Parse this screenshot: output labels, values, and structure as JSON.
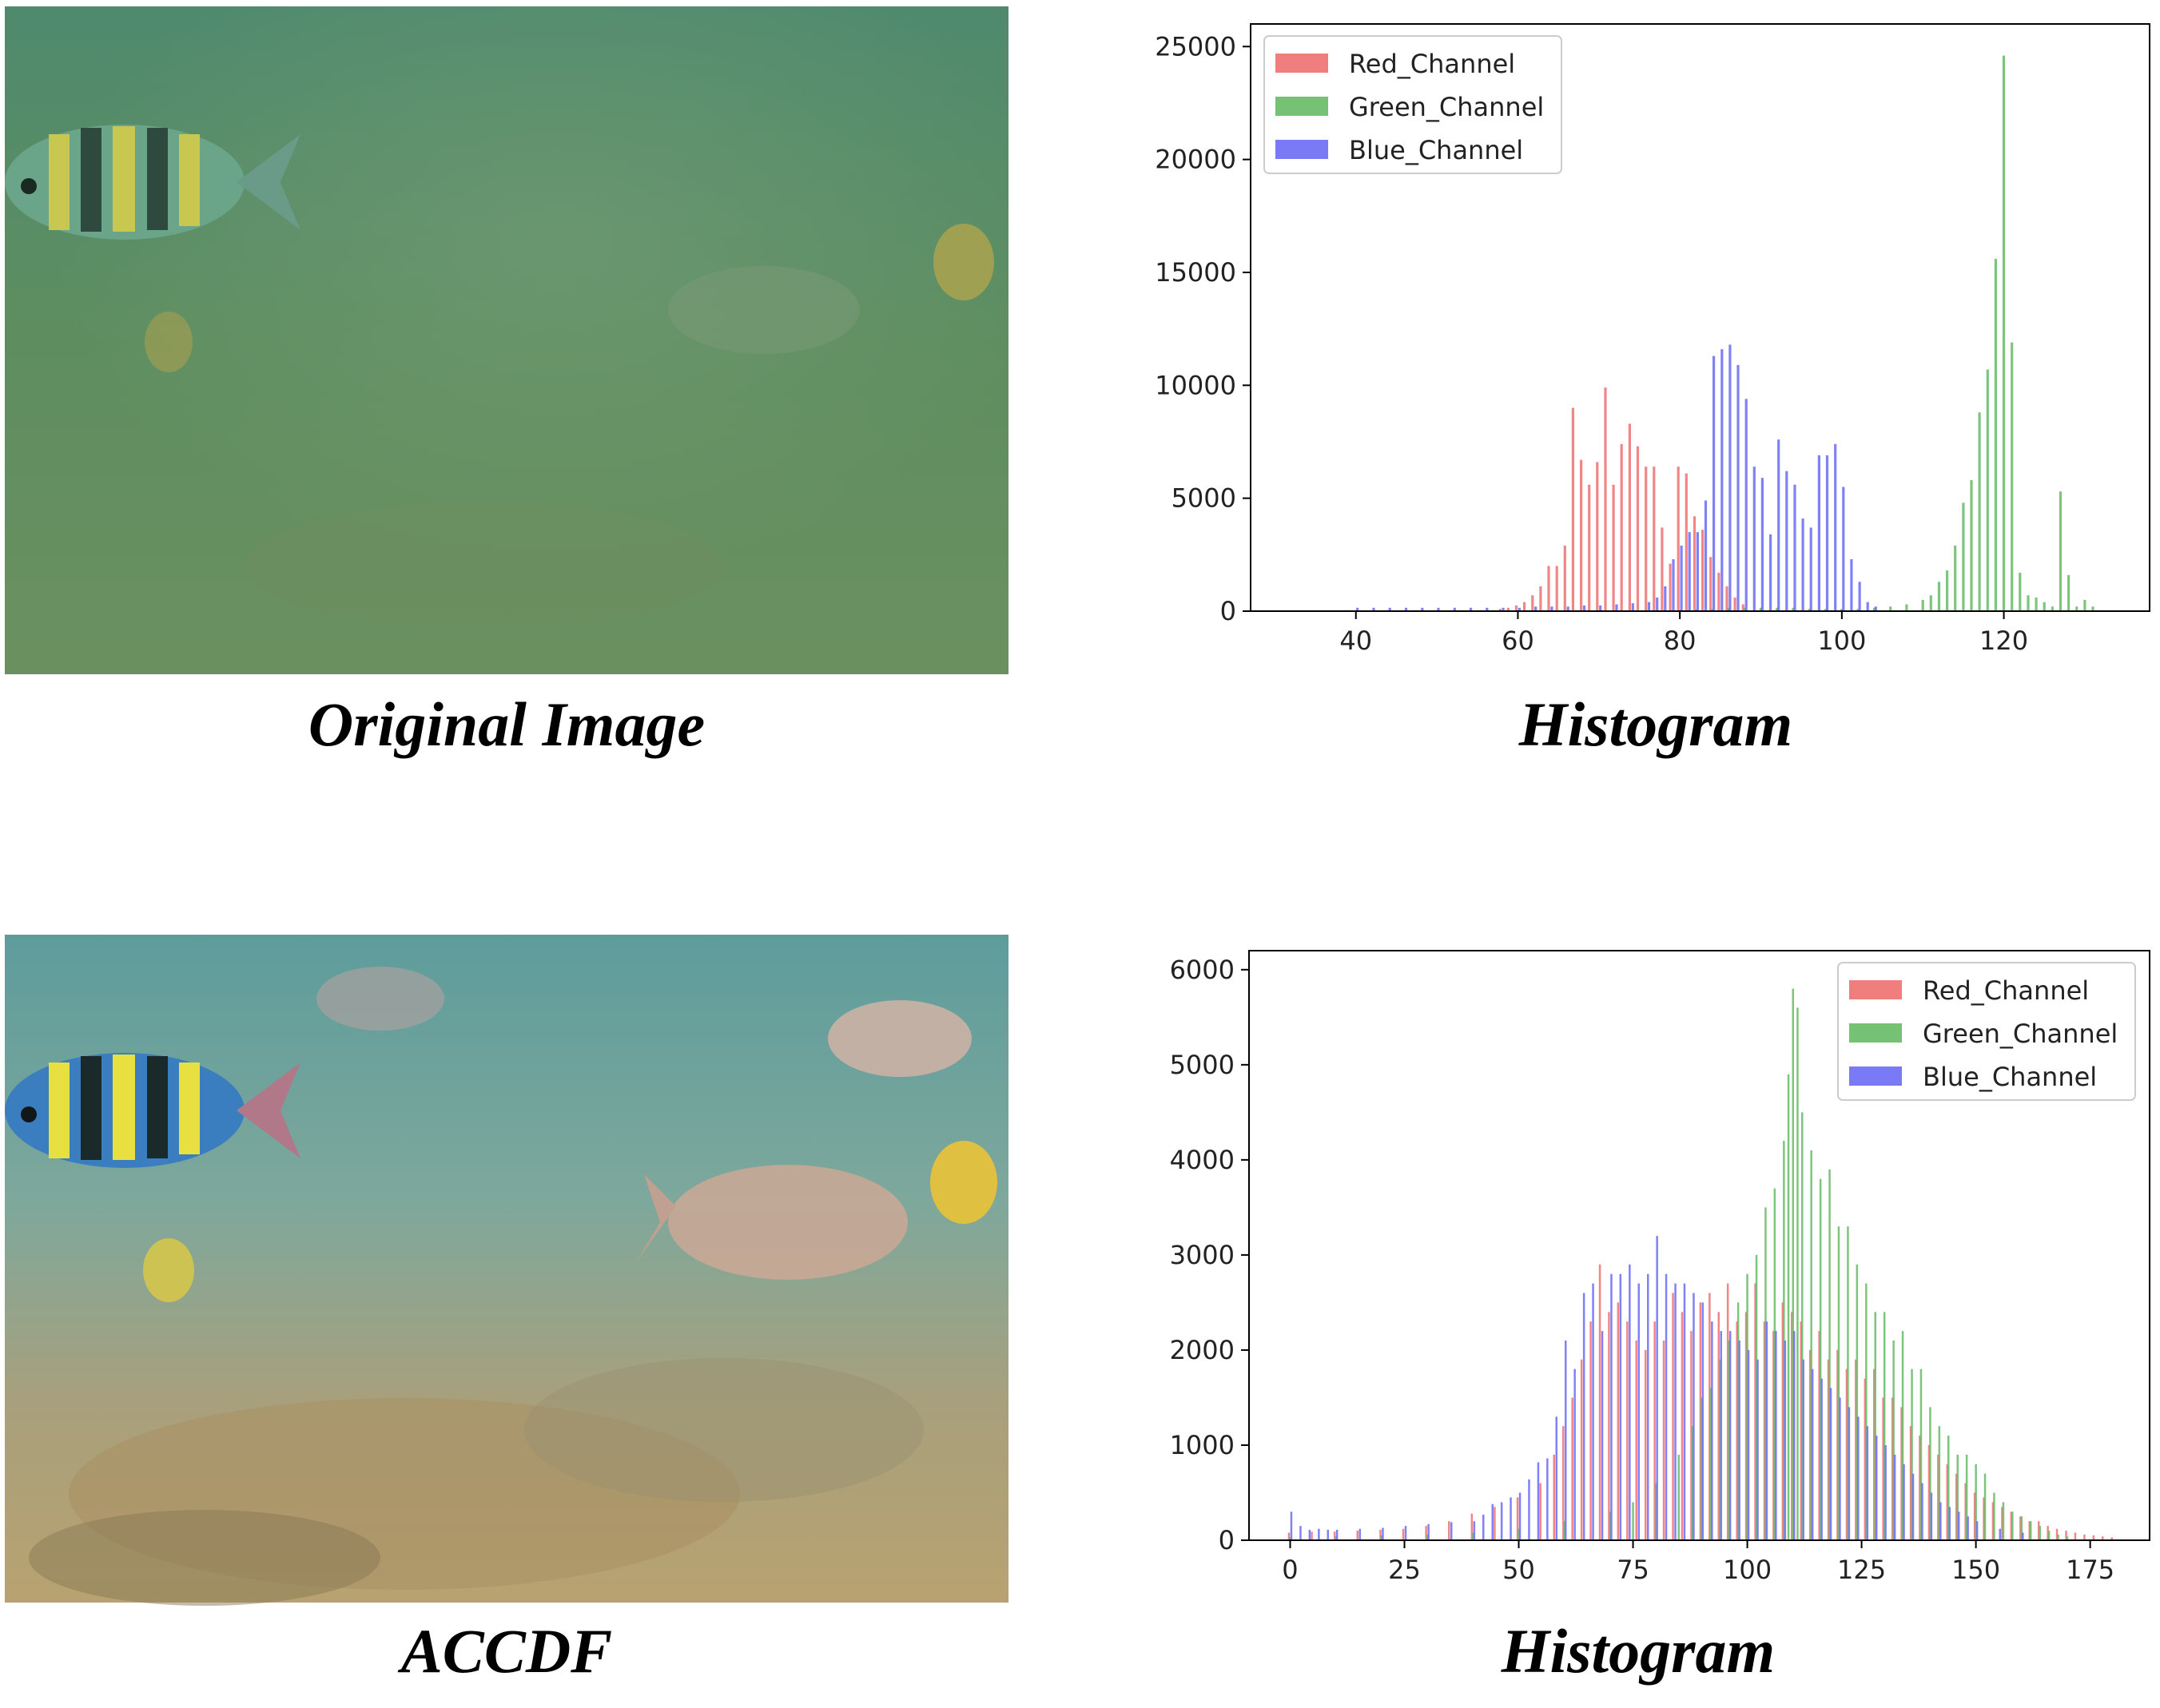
{
  "captions": {
    "original": "Original Image",
    "hist_top": "Histogram",
    "accdf": "ACCDF",
    "hist_bottom": "Histogram"
  },
  "colors": {
    "red": "#f07070",
    "green": "#66bb66",
    "blue": "#6b6bf5",
    "water_top": "#5a8a62",
    "water_bottom": "#6fa2a0",
    "sand_bottom": "#b6a472"
  },
  "chart_data": [
    {
      "type": "bar",
      "xlim": [
        27,
        138
      ],
      "ylim": [
        0,
        26000
      ],
      "xticks": [
        40,
        60,
        80,
        100,
        120
      ],
      "yticks": [
        0,
        5000,
        10000,
        15000,
        20000,
        25000
      ],
      "grid": false,
      "legend_position": "top-left",
      "series": [
        {
          "name": "Red_Channel",
          "color": "#f07070",
          "x": [
            58,
            59,
            60,
            61,
            62,
            63,
            64,
            65,
            66,
            67,
            68,
            69,
            70,
            71,
            72,
            73,
            74,
            75,
            76,
            77,
            78,
            79,
            80,
            81,
            82,
            83,
            84,
            85,
            86,
            87,
            88
          ],
          "values": [
            100,
            150,
            250,
            400,
            700,
            1100,
            2000,
            2000,
            2900,
            9000,
            6700,
            5600,
            6600,
            9900,
            5600,
            7400,
            8300,
            7300,
            6400,
            6400,
            3700,
            2100,
            6400,
            6100,
            4200,
            3600,
            2400,
            1700,
            1100,
            600,
            300
          ]
        },
        {
          "name": "Green_Channel",
          "color": "#66bb66",
          "x": [
            80,
            82,
            84,
            86,
            88,
            90,
            92,
            94,
            96,
            98,
            100,
            102,
            104,
            106,
            108,
            110,
            111,
            112,
            113,
            114,
            115,
            116,
            117,
            118,
            119,
            120,
            121,
            122,
            123,
            124,
            125,
            126,
            127,
            128,
            129,
            130,
            131
          ],
          "values": [
            50,
            80,
            100,
            150,
            150,
            150,
            150,
            150,
            100,
            100,
            100,
            100,
            150,
            200,
            300,
            500,
            700,
            1300,
            1800,
            2900,
            4800,
            5800,
            8800,
            10700,
            15600,
            24600,
            11900,
            1700,
            700,
            600,
            400,
            200,
            5300,
            1600,
            200,
            500,
            200
          ]
        },
        {
          "name": "Blue_Channel",
          "color": "#6b6bf5",
          "x": [
            40,
            42,
            44,
            46,
            48,
            50,
            52,
            54,
            56,
            58,
            60,
            62,
            64,
            66,
            68,
            70,
            72,
            74,
            76,
            77,
            78,
            79,
            80,
            81,
            82,
            83,
            84,
            85,
            86,
            87,
            88,
            89,
            90,
            91,
            92,
            93,
            94,
            95,
            96,
            97,
            98,
            99,
            100,
            101,
            102,
            103,
            104
          ],
          "values": [
            150,
            150,
            150,
            150,
            150,
            150,
            150,
            150,
            150,
            150,
            150,
            200,
            200,
            200,
            250,
            250,
            300,
            350,
            400,
            600,
            1100,
            2300,
            2900,
            3500,
            3500,
            4900,
            11300,
            11600,
            11800,
            10900,
            9400,
            6400,
            5900,
            3400,
            7600,
            6200,
            5600,
            4100,
            3700,
            6900,
            6900,
            7400,
            5500,
            2300,
            1300,
            400,
            200
          ]
        }
      ]
    },
    {
      "type": "bar",
      "xlim": [
        -9,
        188
      ],
      "ylim": [
        0,
        6200
      ],
      "xticks": [
        0,
        25,
        50,
        75,
        100,
        125,
        150,
        175
      ],
      "yticks": [
        0,
        1000,
        2000,
        3000,
        4000,
        5000,
        6000
      ],
      "grid": false,
      "legend_position": "top-right",
      "series": [
        {
          "name": "Red_Channel",
          "color": "#f07070",
          "x": [
            0,
            5,
            10,
            15,
            20,
            25,
            30,
            35,
            40,
            45,
            50,
            55,
            58,
            60,
            62,
            64,
            66,
            68,
            70,
            72,
            74,
            76,
            78,
            80,
            82,
            84,
            86,
            88,
            90,
            92,
            94,
            96,
            98,
            100,
            102,
            104,
            106,
            108,
            110,
            112,
            114,
            116,
            118,
            120,
            122,
            124,
            126,
            128,
            130,
            132,
            134,
            136,
            138,
            140,
            142,
            144,
            146,
            148,
            150,
            152,
            154,
            156,
            158,
            160,
            162,
            164,
            166,
            168,
            170,
            172,
            174,
            176,
            178,
            180
          ],
          "values": [
            80,
            90,
            90,
            100,
            110,
            120,
            150,
            200,
            280,
            350,
            450,
            600,
            900,
            1200,
            1500,
            1900,
            2300,
            2900,
            2400,
            2500,
            2300,
            2100,
            2000,
            2300,
            2100,
            2600,
            2400,
            2200,
            2500,
            2600,
            2400,
            2700,
            2300,
            2400,
            2700,
            2300,
            2200,
            2500,
            2400,
            2300,
            2000,
            2200,
            1900,
            2000,
            1800,
            1900,
            1700,
            1800,
            1500,
            1500,
            1400,
            1200,
            1100,
            1000,
            900,
            800,
            700,
            600,
            500,
            450,
            400,
            350,
            300,
            250,
            200,
            200,
            150,
            120,
            100,
            80,
            60,
            50,
            40,
            30
          ]
        },
        {
          "name": "Green_Channel",
          "color": "#66bb66",
          "x": [
            0,
            10,
            20,
            30,
            40,
            50,
            60,
            70,
            75,
            80,
            85,
            88,
            90,
            92,
            94,
            96,
            98,
            100,
            102,
            104,
            106,
            108,
            109,
            110,
            111,
            112,
            114,
            116,
            118,
            120,
            122,
            124,
            126,
            128,
            130,
            132,
            134,
            136,
            138,
            140,
            142,
            144,
            146,
            148,
            150,
            152,
            154,
            156,
            158,
            160,
            162,
            164,
            166,
            168,
            170
          ],
          "values": [
            30,
            40,
            50,
            60,
            80,
            120,
            200,
            300,
            400,
            600,
            900,
            1200,
            1500,
            1600,
            1900,
            2100,
            2500,
            2800,
            3000,
            3500,
            3700,
            4200,
            4900,
            5800,
            5600,
            4500,
            4100,
            3800,
            3900,
            3300,
            3300,
            2900,
            2700,
            2400,
            2400,
            2100,
            2200,
            1800,
            1800,
            1400,
            1200,
            1100,
            900,
            900,
            800,
            700,
            500,
            400,
            300,
            250,
            200,
            150,
            100,
            60,
            40
          ]
        },
        {
          "name": "Blue_Channel",
          "color": "#6b6bf5",
          "x": [
            0,
            2,
            4,
            6,
            8,
            10,
            15,
            20,
            25,
            30,
            35,
            40,
            42,
            44,
            46,
            48,
            50,
            52,
            54,
            56,
            58,
            60,
            62,
            64,
            66,
            68,
            70,
            72,
            74,
            76,
            78,
            80,
            82,
            84,
            86,
            88,
            90,
            92,
            94,
            96,
            98,
            100,
            102,
            104,
            106,
            108,
            110,
            112,
            114,
            116,
            118,
            120,
            122,
            124,
            126,
            128,
            130,
            132,
            134,
            136,
            138,
            140,
            142,
            144,
            146,
            148,
            150,
            155,
            160
          ],
          "values": [
            300,
            150,
            110,
            120,
            110,
            110,
            120,
            130,
            150,
            170,
            190,
            200,
            270,
            380,
            400,
            450,
            500,
            640,
            820,
            860,
            1300,
            2100,
            1800,
            2600,
            2700,
            2200,
            2800,
            2800,
            2900,
            2700,
            2800,
            3200,
            2800,
            2700,
            2700,
            2600,
            2500,
            2300,
            2200,
            2200,
            2100,
            2000,
            1900,
            2300,
            2200,
            2100,
            2200,
            1900,
            1800,
            1700,
            1600,
            1500,
            1400,
            1300,
            1200,
            1100,
            1000,
            900,
            800,
            700,
            600,
            500,
            400,
            350,
            300,
            250,
            200,
            120,
            80
          ]
        }
      ]
    }
  ]
}
